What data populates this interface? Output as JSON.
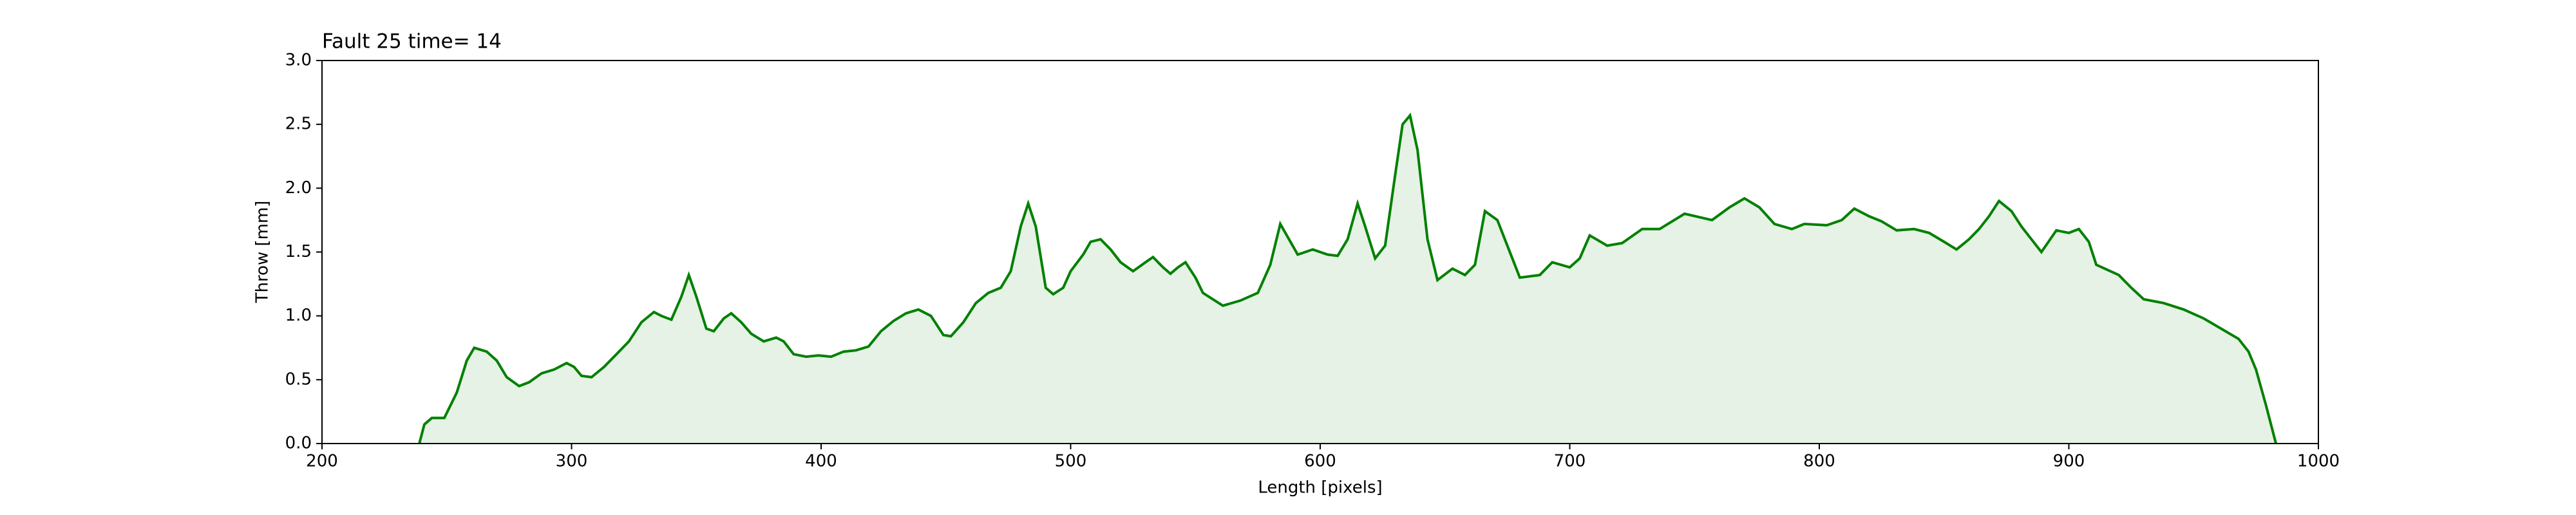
{
  "chart_data": {
    "type": "area",
    "title": "Fault 25 time= 14",
    "xlabel": "Length [pixels]",
    "ylabel": "Throw [mm]",
    "color": "#008000",
    "fill_color": "#e5f2e5",
    "xlim": [
      200,
      1000
    ],
    "ylim": [
      0,
      3
    ],
    "xticks": [
      200,
      300,
      400,
      500,
      600,
      700,
      800,
      900,
      1000
    ],
    "yticks": [
      {
        "value": 0,
        "label": "0.0"
      },
      0.5,
      {
        "value": 1,
        "label": "1.0"
      },
      1.5,
      {
        "value": 2,
        "label": "2.0"
      },
      2.5,
      {
        "value": 3,
        "label": "3.0"
      }
    ],
    "x": [
      239,
      241,
      244,
      249,
      254,
      258,
      261,
      266,
      270,
      274,
      279,
      283,
      288,
      293,
      298,
      301,
      304,
      308,
      313,
      318,
      323,
      328,
      333,
      336,
      340,
      344,
      347,
      350,
      354,
      357,
      361,
      364,
      368,
      372,
      377,
      382,
      385,
      389,
      394,
      399,
      404,
      409,
      414,
      419,
      424,
      429,
      434,
      439,
      444,
      449,
      452,
      457,
      462,
      467,
      472,
      476,
      480,
      483,
      486,
      490,
      493,
      497,
      500,
      505,
      508,
      512,
      516,
      520,
      525,
      530,
      533,
      537,
      540,
      543,
      546,
      550,
      553,
      561,
      568,
      575,
      580,
      584,
      591,
      597,
      603,
      607,
      611,
      615,
      618,
      622,
      626,
      630,
      633,
      636,
      639,
      643,
      647,
      653,
      658,
      662,
      666,
      671,
      675,
      680,
      688,
      693,
      700,
      704,
      708,
      715,
      721,
      729,
      736,
      746,
      757,
      764,
      770,
      776,
      782,
      789,
      794,
      803,
      809,
      814,
      820,
      825,
      831,
      838,
      844,
      850,
      855,
      860,
      864,
      868,
      872,
      877,
      881,
      885,
      889,
      895,
      900,
      904,
      908,
      911,
      920,
      925,
      930,
      938,
      946,
      954,
      961,
      968,
      972,
      975,
      979,
      983
    ],
    "values": [
      0.0,
      0.15,
      0.2,
      0.2,
      0.4,
      0.65,
      0.75,
      0.72,
      0.65,
      0.52,
      0.45,
      0.48,
      0.55,
      0.58,
      0.63,
      0.6,
      0.53,
      0.52,
      0.6,
      0.7,
      0.8,
      0.95,
      1.03,
      1.0,
      0.97,
      1.15,
      1.32,
      1.15,
      0.9,
      0.88,
      0.98,
      1.02,
      0.95,
      0.86,
      0.8,
      0.83,
      0.8,
      0.7,
      0.68,
      0.69,
      0.68,
      0.72,
      0.73,
      0.76,
      0.88,
      0.96,
      1.02,
      1.05,
      1.0,
      0.85,
      0.84,
      0.95,
      1.1,
      1.18,
      1.22,
      1.35,
      1.7,
      1.88,
      1.7,
      1.22,
      1.17,
      1.22,
      1.35,
      1.48,
      1.58,
      1.6,
      1.52,
      1.42,
      1.35,
      1.42,
      1.46,
      1.38,
      1.33,
      1.38,
      1.42,
      1.3,
      1.18,
      1.08,
      1.12,
      1.18,
      1.4,
      1.72,
      1.48,
      1.52,
      1.48,
      1.47,
      1.6,
      1.88,
      1.7,
      1.45,
      1.55,
      2.1,
      2.5,
      2.57,
      2.3,
      1.6,
      1.28,
      1.37,
      1.32,
      1.4,
      1.82,
      1.75,
      1.55,
      1.3,
      1.32,
      1.42,
      1.38,
      1.45,
      1.63,
      1.55,
      1.57,
      1.68,
      1.68,
      1.8,
      1.75,
      1.85,
      1.92,
      1.85,
      1.72,
      1.68,
      1.72,
      1.71,
      1.75,
      1.84,
      1.78,
      1.74,
      1.67,
      1.68,
      1.65,
      1.58,
      1.52,
      1.6,
      1.68,
      1.78,
      1.9,
      1.82,
      1.7,
      1.6,
      1.5,
      1.67,
      1.65,
      1.68,
      1.58,
      1.4,
      1.32,
      1.22,
      1.13,
      1.1,
      1.05,
      0.98,
      0.9,
      0.82,
      0.72,
      0.58,
      0.3,
      0.0
    ]
  }
}
